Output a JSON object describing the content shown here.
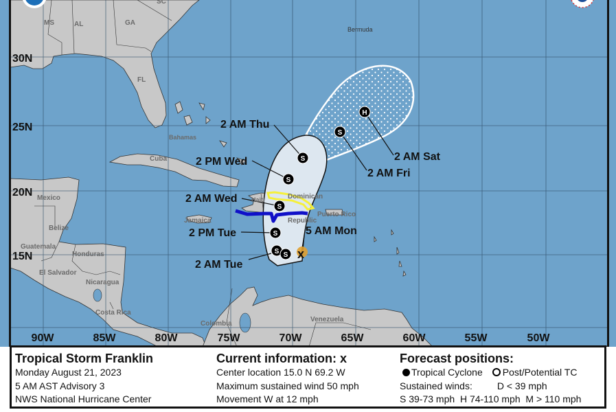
{
  "storm": {
    "title": "Tropical Storm Franklin",
    "date": "Monday August 21, 2023",
    "advisory": "5 AM AST Advisory 3",
    "agency": "NWS National Hurricane Center"
  },
  "current": {
    "heading": "Current information:",
    "marker": "x",
    "location": "Center location 15.0 N 69.2 W",
    "wind": "Maximum sustained wind 50 mph",
    "movement": "Movement W at 12 mph"
  },
  "forecast_legend": {
    "heading": "Forecast positions:",
    "tropical_cyclone": "Tropical Cyclone",
    "post_potential": "Post/Potential TC",
    "sustained_winds": "Sustained winds:",
    "d": "D < 39 mph",
    "shm": "S 39-73 mph  H 74-110 mph  M > 110 mph"
  },
  "map": {
    "lat_labels": [
      "30N",
      "25N",
      "20N",
      "15N"
    ],
    "lon_labels": [
      "90W",
      "85W",
      "80W",
      "75W",
      "70W",
      "65W",
      "60W",
      "55W",
      "50W"
    ],
    "places": {
      "ms": "MS",
      "al": "AL",
      "ga": "GA",
      "sc": "SC",
      "fl": "FL",
      "bermuda": "Bermuda",
      "cuba": "Cuba",
      "bahamas": "Bahamas",
      "mexico": "Mexico",
      "belize": "Belize",
      "guatemala": "Guatemala",
      "honduras": "Honduras",
      "el_salvador": "El Salvador",
      "nicaragua": "Nicaragua",
      "costa_rica": "Costa Rica",
      "jamaica": "Jamaica",
      "haiti": "Haiti",
      "dominican": "Dominican",
      "republic": "Republic",
      "puerto_rico": "Puerto Rico",
      "venezuela": "Venezuela",
      "colombia": "Colombia"
    },
    "forecast_points": [
      {
        "label": "5 AM Mon",
        "symbol": "x"
      },
      {
        "label": "2 AM Tue",
        "symbol": "S"
      },
      {
        "label": "2 PM Tue",
        "symbol": "S"
      },
      {
        "label": "2 AM Wed",
        "symbol": "S"
      },
      {
        "label": "2 PM Wed",
        "symbol": "S"
      },
      {
        "label": "2 AM Thu",
        "symbol": "S"
      },
      {
        "label": "2 AM Fri",
        "symbol": "S"
      },
      {
        "label": "2 AM Sat",
        "symbol": "H"
      }
    ],
    "extra_symbol": "S",
    "colors": {
      "ocean": "#6ea3cb",
      "land": "#c8c8c8",
      "cone": "#dde7f0",
      "warning": "#1010c8",
      "watch": "#f5f03a",
      "current_wind": "#e0a030"
    }
  }
}
